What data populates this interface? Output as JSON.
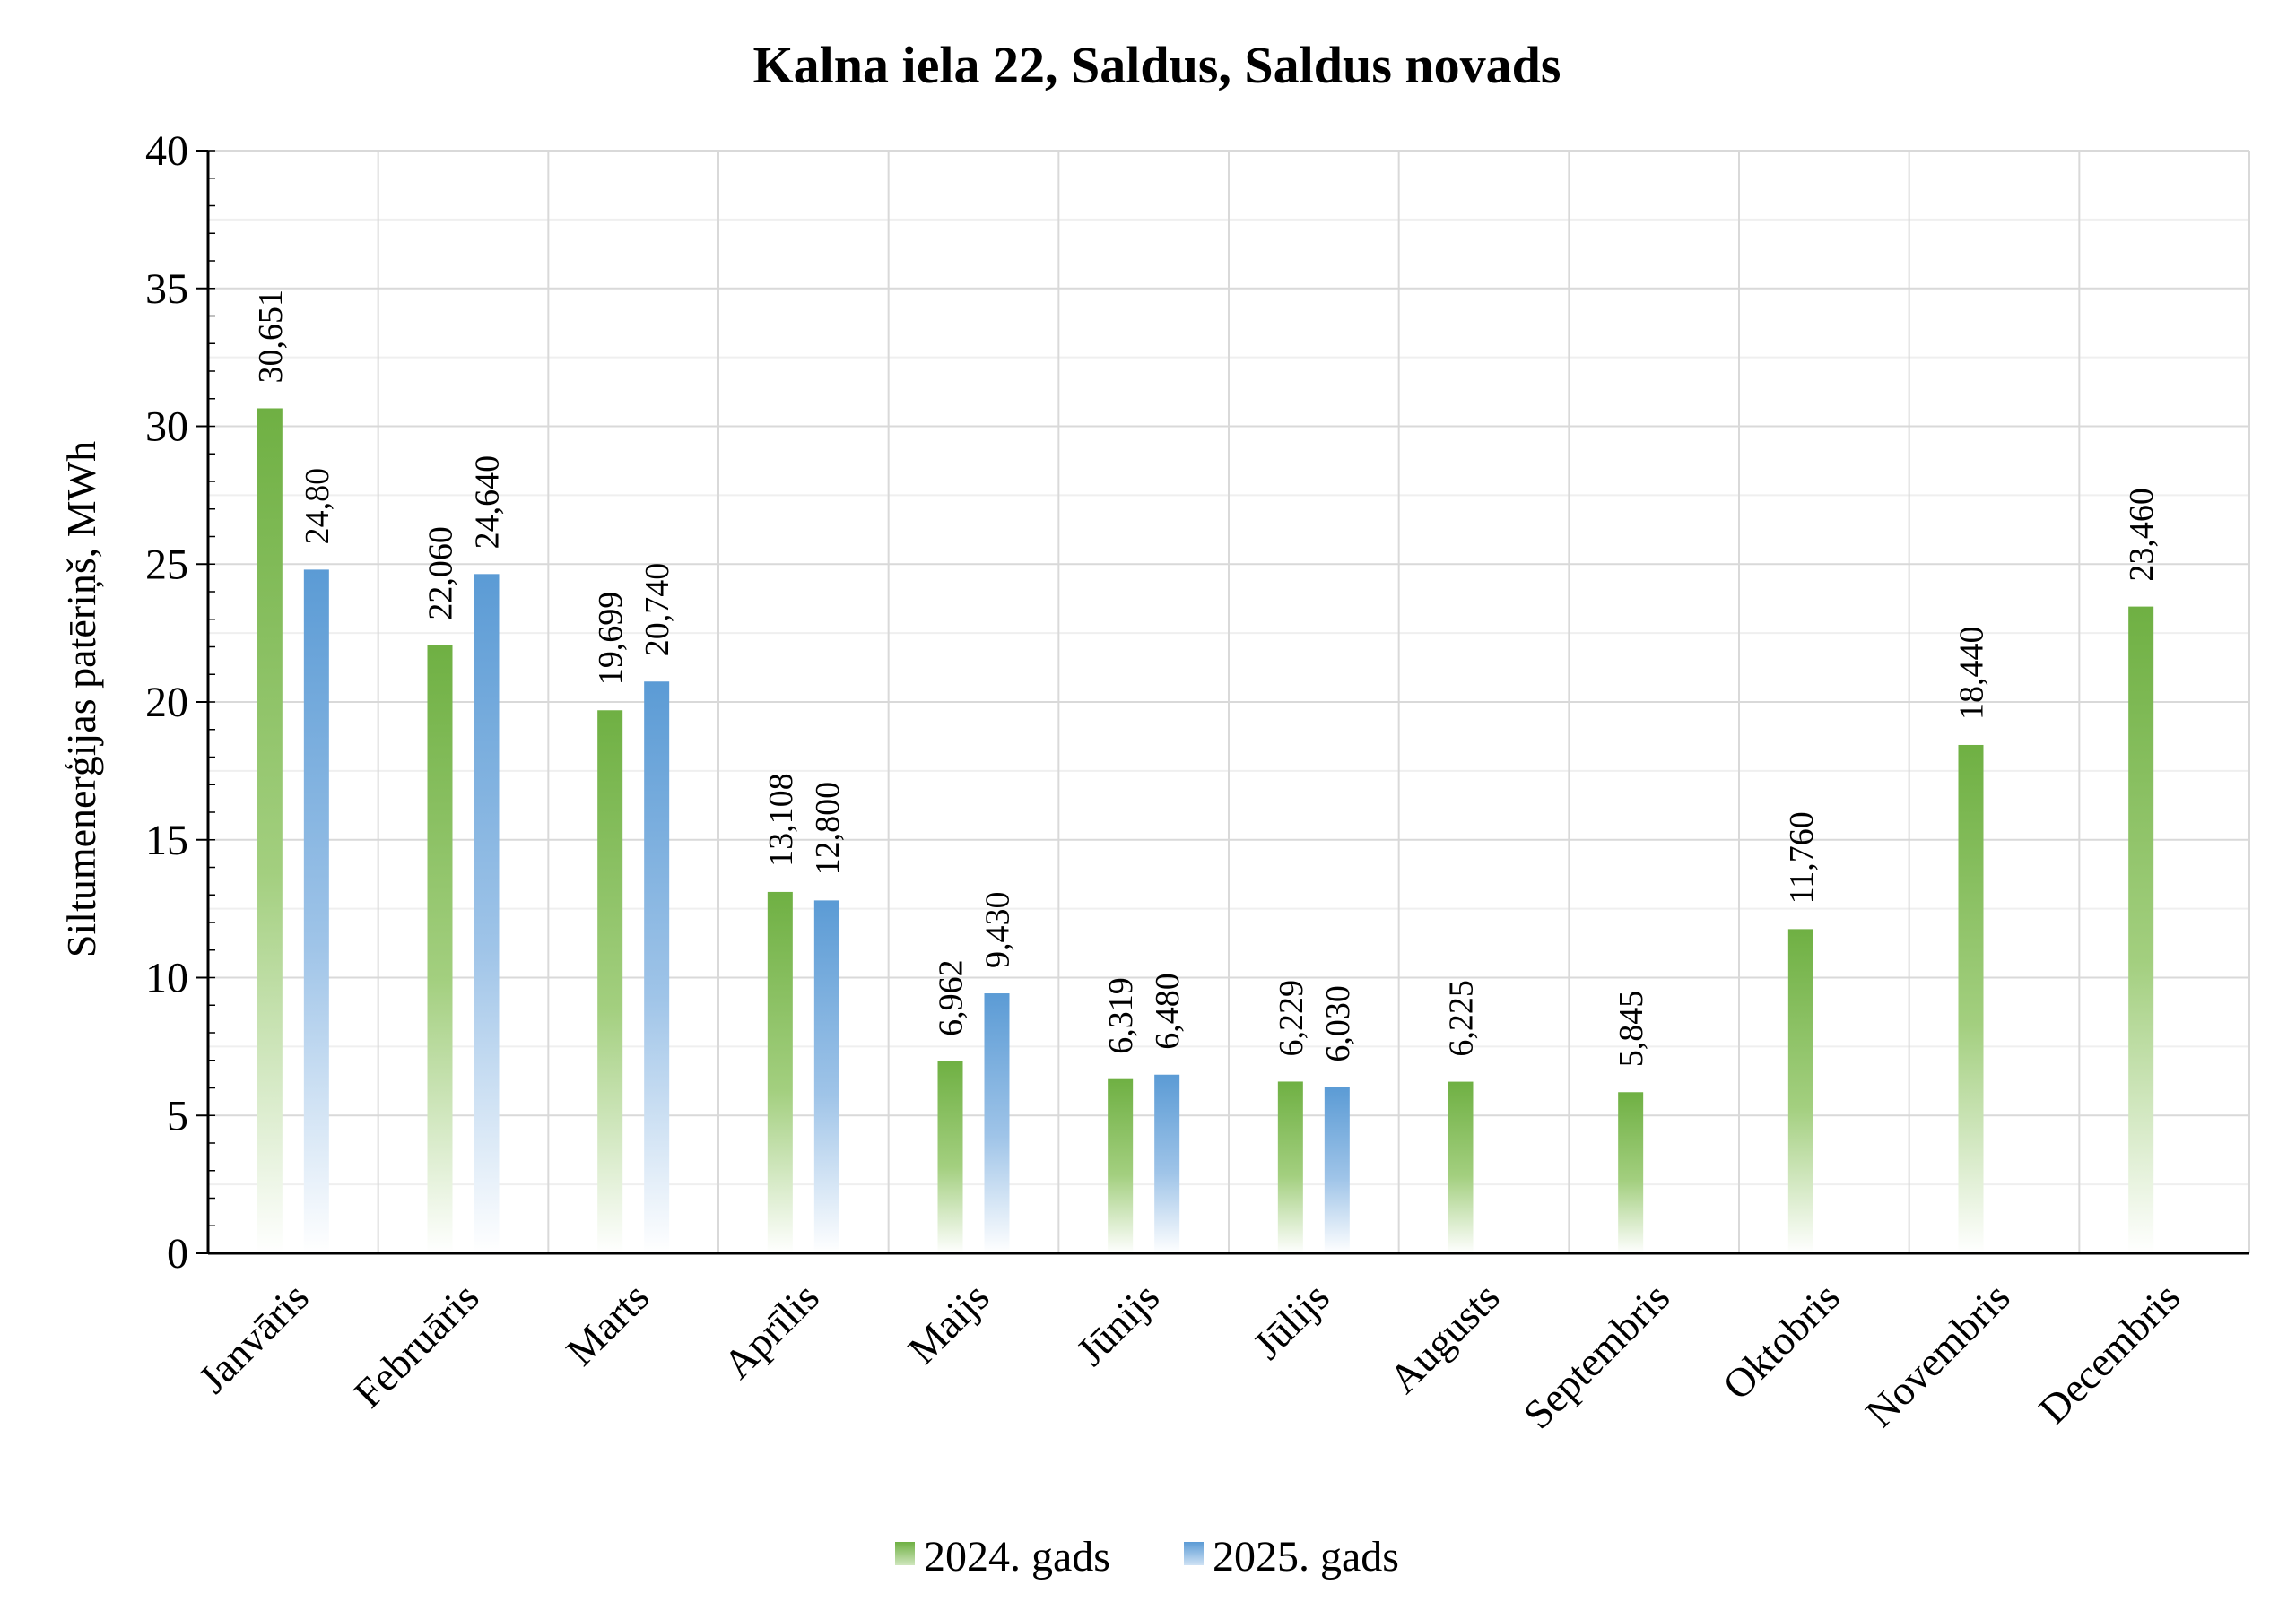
{
  "chart_data": {
    "type": "bar",
    "title": "Kalna iela 22, Saldus, Saldus novads",
    "ylabel": "Siltumenerģijas patēriņš, MWh",
    "xlabel": "",
    "ylim": [
      0,
      40
    ],
    "yticks": [
      0,
      5,
      10,
      15,
      20,
      25,
      30,
      35,
      40
    ],
    "grid": true,
    "legend_position": "bottom",
    "categories": [
      "Janvāris",
      "Februāris",
      "Marts",
      "Aprīlis",
      "Maijs",
      "Jūnijs",
      "Jūlijs",
      "Augusts",
      "Septembris",
      "Oktobris",
      "Novembris",
      "Decembris"
    ],
    "series": [
      {
        "name": "2024. gads",
        "color": "#6fb043",
        "values": [
          30.651,
          22.06,
          19.699,
          13.108,
          6.962,
          6.319,
          6.229,
          6.225,
          5.845,
          11.76,
          18.44,
          23.46
        ],
        "labels": [
          "30,651",
          "22,060",
          "19,699",
          "13,108",
          "6,962",
          "6,319",
          "6,229",
          "6,225",
          "5,845",
          "11,760",
          "18,440",
          "23,460"
        ]
      },
      {
        "name": "2025. gads",
        "color": "#5b9bd5",
        "values": [
          24.8,
          24.64,
          20.74,
          12.8,
          9.43,
          6.48,
          6.03,
          null,
          null,
          null,
          null,
          null
        ],
        "labels": [
          "24,80",
          "24,640",
          "20,740",
          "12,800",
          "9,430",
          "6,480",
          "6,030",
          null,
          null,
          null,
          null,
          null
        ]
      }
    ]
  }
}
